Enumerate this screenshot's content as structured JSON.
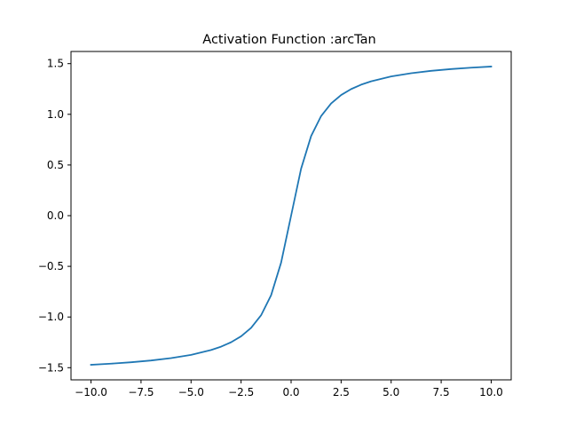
{
  "chart_data": {
    "type": "line",
    "title": "Activation Function :arcTan",
    "xlabel": "",
    "ylabel": "",
    "xlim": [
      -11.0,
      11.0
    ],
    "ylim": [
      -1.62,
      1.62
    ],
    "xticks": [
      -10.0,
      -7.5,
      -5.0,
      -2.5,
      0.0,
      2.5,
      5.0,
      7.5,
      10.0
    ],
    "xtick_labels": [
      "−10.0",
      "−7.5",
      "−5.0",
      "−2.5",
      "0.0",
      "2.5",
      "5.0",
      "7.5",
      "10.0"
    ],
    "yticks": [
      1.5,
      1.0,
      0.5,
      0.0,
      -0.5,
      -1.0,
      -1.5
    ],
    "ytick_labels": [
      "1.5",
      "1.0",
      "0.5",
      "0.0",
      "−0.5",
      "−1.0",
      "−1.5"
    ],
    "grid": false,
    "series": [
      {
        "color": "#1f77b4",
        "x": [
          -10,
          -9,
          -8,
          -7,
          -6,
          -5,
          -4,
          -3.5,
          -3,
          -2.5,
          -2,
          -1.5,
          -1,
          -0.5,
          0,
          0.5,
          1,
          1.5,
          2,
          2.5,
          3,
          3.5,
          4,
          5,
          6,
          7,
          8,
          9,
          10
        ],
        "y": [
          -1.4711,
          -1.4601,
          -1.4464,
          -1.4289,
          -1.4056,
          -1.3734,
          -1.3258,
          -1.2925,
          -1.249,
          -1.1903,
          -1.1071,
          -0.9828,
          -0.7854,
          -0.4636,
          0.0,
          0.4636,
          0.7854,
          0.9828,
          1.1071,
          1.1903,
          1.249,
          1.2925,
          1.3258,
          1.3734,
          1.4056,
          1.4289,
          1.4464,
          1.4601,
          1.4711
        ]
      }
    ]
  }
}
